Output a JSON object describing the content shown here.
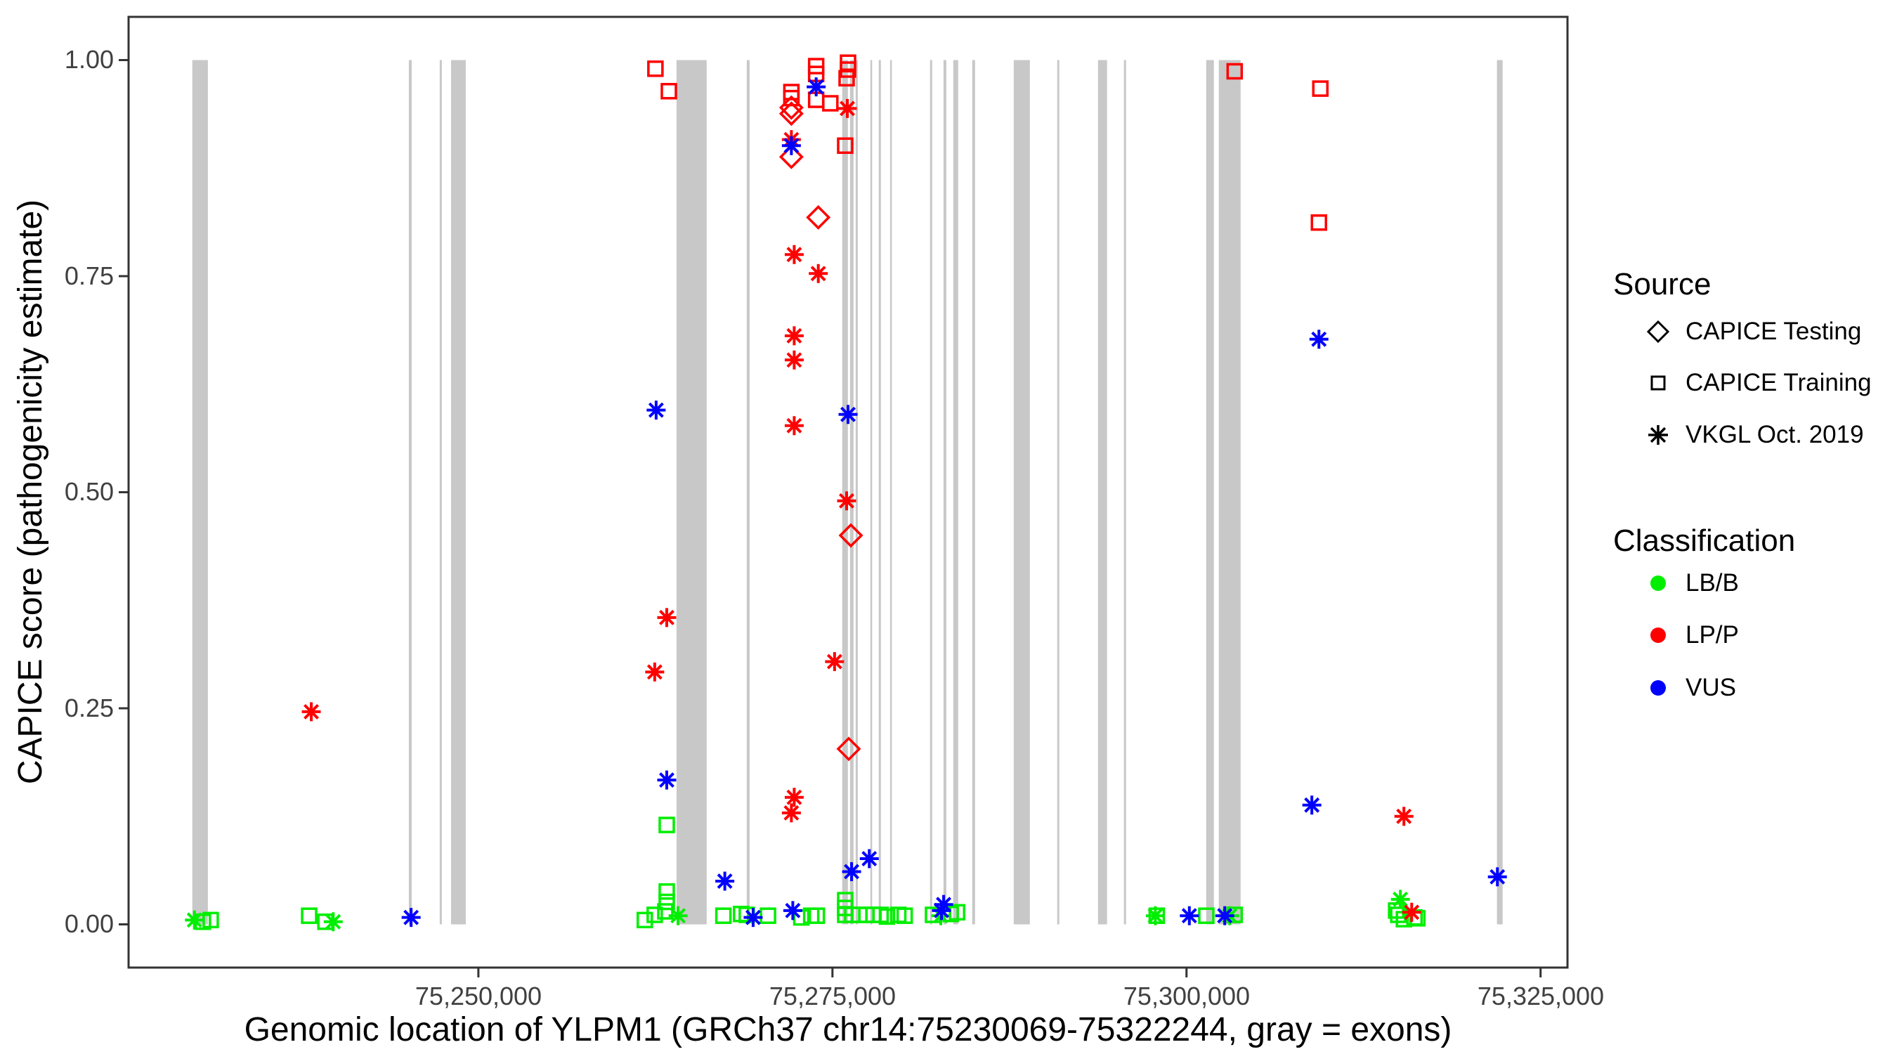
{
  "axes": {
    "x": {
      "title": "Genomic location of YLPM1 (GRCh37 chr14:75230069-75322244, gray = exons)",
      "tick_labels": [
        "75,250,000",
        "75,275,000",
        "75,300,000",
        "75,325,000"
      ],
      "tick_values": [
        75250000,
        75275000,
        75300000,
        75325000
      ],
      "domain": [
        75225300,
        75326900
      ]
    },
    "y": {
      "title": "CAPICE score (pathogenicity estimate)",
      "tick_labels": [
        "0.00",
        "0.25",
        "0.50",
        "0.75",
        "1.00"
      ],
      "tick_values": [
        0,
        0.25,
        0.5,
        0.75,
        1
      ],
      "domain": [
        -0.05,
        1.05
      ]
    }
  },
  "legend": {
    "source": {
      "title": "Source",
      "items": [
        {
          "label": "CAPICE Testing",
          "shape": "diamond"
        },
        {
          "label": "CAPICE Training",
          "shape": "square"
        },
        {
          "label": "VKGL Oct. 2019",
          "shape": "asterisk"
        }
      ]
    },
    "classification": {
      "title": "Classification",
      "items": [
        {
          "label": "LB/B",
          "color": "#00EE00"
        },
        {
          "label": "LP/P",
          "color": "#FF0000"
        },
        {
          "label": "VUS",
          "color": "#0000FF"
        }
      ]
    }
  },
  "chart_data": {
    "type": "scatter",
    "title": "",
    "xlabel": "Genomic location of YLPM1 (GRCh37 chr14:75230069-75322244, gray = exons)",
    "ylabel": "CAPICE score (pathogenicity estimate)",
    "xlim": [
      75225300,
      75326900
    ],
    "ylim": [
      -0.05,
      1.05
    ],
    "grid": false,
    "legend_position": "right",
    "exon_color": "#C8C8C8",
    "class_colors": {
      "B": "#00EE00",
      "P": "#FF0000",
      "U": "#0000FF"
    },
    "class_names": {
      "B": "LB/B",
      "P": "LP/P",
      "U": "VUS"
    },
    "source_shapes": {
      "T": "diamond (CAPICE Testing)",
      "R": "square (CAPICE Training)",
      "V": "asterisk (VKGL Oct. 2019)"
    },
    "exons_bp": [
      [
        75229800,
        75230900
      ],
      [
        75245090,
        75245290
      ],
      [
        75247270,
        75247420
      ],
      [
        75248070,
        75249110
      ],
      [
        75263990,
        75266120
      ],
      [
        75268950,
        75269150
      ],
      [
        75275690,
        75276090
      ],
      [
        75276240,
        75276490
      ],
      [
        75276640,
        75276790
      ],
      [
        75277680,
        75277780
      ],
      [
        75278270,
        75278420
      ],
      [
        75279070,
        75279170
      ],
      [
        75281890,
        75282040
      ],
      [
        75282840,
        75283040
      ],
      [
        75283530,
        75283880
      ],
      [
        75284870,
        75285070
      ],
      [
        75287800,
        75288940
      ],
      [
        75290870,
        75291020
      ],
      [
        75293750,
        75294390
      ],
      [
        75295580,
        75295730
      ],
      [
        75301390,
        75301930
      ],
      [
        75302280,
        75303820
      ],
      [
        75321920,
        75322320
      ]
    ],
    "points": [
      [
        75229950,
        0.005,
        "V",
        "B"
      ],
      [
        75230550,
        0.003,
        "R",
        "B"
      ],
      [
        75231100,
        0.005,
        "R",
        "B"
      ],
      [
        75238050,
        0.01,
        "R",
        "B"
      ],
      [
        75239200,
        0.003,
        "R",
        "B"
      ],
      [
        75239750,
        0.003,
        "V",
        "B"
      ],
      [
        75261750,
        0.005,
        "R",
        "B"
      ],
      [
        75262450,
        0.011,
        "R",
        "B"
      ],
      [
        75263200,
        0.015,
        "R",
        "B"
      ],
      [
        75263300,
        0.115,
        "R",
        "B"
      ],
      [
        75263300,
        0.038,
        "R",
        "B"
      ],
      [
        75263300,
        0.026,
        "R",
        "B"
      ],
      [
        75264100,
        0.01,
        "V",
        "B"
      ],
      [
        75267300,
        0.01,
        "R",
        "B"
      ],
      [
        75268550,
        0.012,
        "R",
        "B"
      ],
      [
        75268950,
        0.011,
        "R",
        "B"
      ],
      [
        75270450,
        0.01,
        "R",
        "B"
      ],
      [
        75272800,
        0.008,
        "R",
        "B"
      ],
      [
        75273500,
        0.01,
        "R",
        "B"
      ],
      [
        75273900,
        0.01,
        "R",
        "B"
      ],
      [
        75275900,
        0.028,
        "R",
        "B"
      ],
      [
        75275900,
        0.019,
        "R",
        "B"
      ],
      [
        75275900,
        0.011,
        "R",
        "B"
      ],
      [
        75276400,
        0.011,
        "R",
        "B"
      ],
      [
        75276900,
        0.011,
        "R",
        "B"
      ],
      [
        75277400,
        0.011,
        "R",
        "B"
      ],
      [
        75277900,
        0.011,
        "R",
        "B"
      ],
      [
        75278400,
        0.011,
        "R",
        "B"
      ],
      [
        75278850,
        0.009,
        "R",
        "B"
      ],
      [
        75279650,
        0.011,
        "R",
        "B"
      ],
      [
        75280100,
        0.01,
        "R",
        "B"
      ],
      [
        75282100,
        0.011,
        "R",
        "B"
      ],
      [
        75282650,
        0.01,
        "V",
        "B"
      ],
      [
        75283350,
        0.012,
        "R",
        "B"
      ],
      [
        75283800,
        0.014,
        "R",
        "B"
      ],
      [
        75297800,
        0.01,
        "V",
        "B"
      ],
      [
        75297900,
        0.01,
        "R",
        "B"
      ],
      [
        75301400,
        0.01,
        "R",
        "B"
      ],
      [
        75303050,
        0.01,
        "V",
        "B"
      ],
      [
        75303400,
        0.011,
        "R",
        "B"
      ],
      [
        75315100,
        0.029,
        "V",
        "B"
      ],
      [
        75314800,
        0.016,
        "R",
        "B"
      ],
      [
        75314950,
        0.011,
        "R",
        "B"
      ],
      [
        75315350,
        0.006,
        "R",
        "B"
      ],
      [
        75316100,
        0.008,
        "R",
        "B"
      ],
      [
        75316300,
        0.007,
        "R",
        "B"
      ],
      [
        75238200,
        0.246,
        "V",
        "P"
      ],
      [
        75262500,
        0.99,
        "R",
        "P"
      ],
      [
        75263450,
        0.964,
        "R",
        "P"
      ],
      [
        75262450,
        0.292,
        "V",
        "P"
      ],
      [
        75263300,
        0.355,
        "V",
        "P"
      ],
      [
        75272100,
        0.963,
        "R",
        "P"
      ],
      [
        75272100,
        0.956,
        "R",
        "P"
      ],
      [
        75272100,
        0.945,
        "T",
        "P"
      ],
      [
        75272100,
        0.938,
        "T",
        "P"
      ],
      [
        75272100,
        0.908,
        "V",
        "P"
      ],
      [
        75272100,
        0.888,
        "T",
        "P"
      ],
      [
        75272300,
        0.775,
        "V",
        "P"
      ],
      [
        75272300,
        0.681,
        "V",
        "P"
      ],
      [
        75272300,
        0.653,
        "V",
        "P"
      ],
      [
        75272300,
        0.577,
        "V",
        "P"
      ],
      [
        75272300,
        0.147,
        "V",
        "P"
      ],
      [
        75272100,
        0.129,
        "V",
        "P"
      ],
      [
        75273850,
        0.993,
        "R",
        "P"
      ],
      [
        75273850,
        0.984,
        "R",
        "P"
      ],
      [
        75273850,
        0.954,
        "R",
        "P"
      ],
      [
        75274000,
        0.818,
        "T",
        "P"
      ],
      [
        75274000,
        0.753,
        "V",
        "P"
      ],
      [
        75274850,
        0.95,
        "R",
        "P"
      ],
      [
        75276100,
        0.997,
        "R",
        "P"
      ],
      [
        75276100,
        0.989,
        "R",
        "P"
      ],
      [
        75276000,
        0.979,
        "R",
        "P"
      ],
      [
        75276050,
        0.944,
        "V",
        "P"
      ],
      [
        75275900,
        0.901,
        "R",
        "P"
      ],
      [
        75276000,
        0.49,
        "V",
        "P"
      ],
      [
        75276300,
        0.45,
        "T",
        "P"
      ],
      [
        75275150,
        0.304,
        "V",
        "P"
      ],
      [
        75276150,
        0.203,
        "T",
        "P"
      ],
      [
        75303400,
        0.987,
        "R",
        "P"
      ],
      [
        75309450,
        0.967,
        "R",
        "P"
      ],
      [
        75309350,
        0.812,
        "R",
        "P"
      ],
      [
        75315350,
        0.125,
        "V",
        "P"
      ],
      [
        75315900,
        0.014,
        "V",
        "P"
      ],
      [
        75245250,
        0.008,
        "V",
        "U"
      ],
      [
        75262550,
        0.595,
        "V",
        "U"
      ],
      [
        75263300,
        0.167,
        "V",
        "U"
      ],
      [
        75267400,
        0.05,
        "V",
        "U"
      ],
      [
        75269400,
        0.008,
        "V",
        "U"
      ],
      [
        75272100,
        0.901,
        "V",
        "U"
      ],
      [
        75272200,
        0.016,
        "V",
        "U"
      ],
      [
        75273850,
        0.969,
        "V",
        "U"
      ],
      [
        75276100,
        0.59,
        "V",
        "U"
      ],
      [
        75276350,
        0.061,
        "V",
        "U"
      ],
      [
        75277600,
        0.076,
        "V",
        "U"
      ],
      [
        75282850,
        0.023,
        "V",
        "U"
      ],
      [
        75282700,
        0.016,
        "V",
        "U"
      ],
      [
        75300200,
        0.01,
        "V",
        "U"
      ],
      [
        75302700,
        0.01,
        "V",
        "U"
      ],
      [
        75308850,
        0.138,
        "V",
        "U"
      ],
      [
        75309350,
        0.677,
        "V",
        "U"
      ],
      [
        75321950,
        0.055,
        "V",
        "U"
      ]
    ]
  }
}
